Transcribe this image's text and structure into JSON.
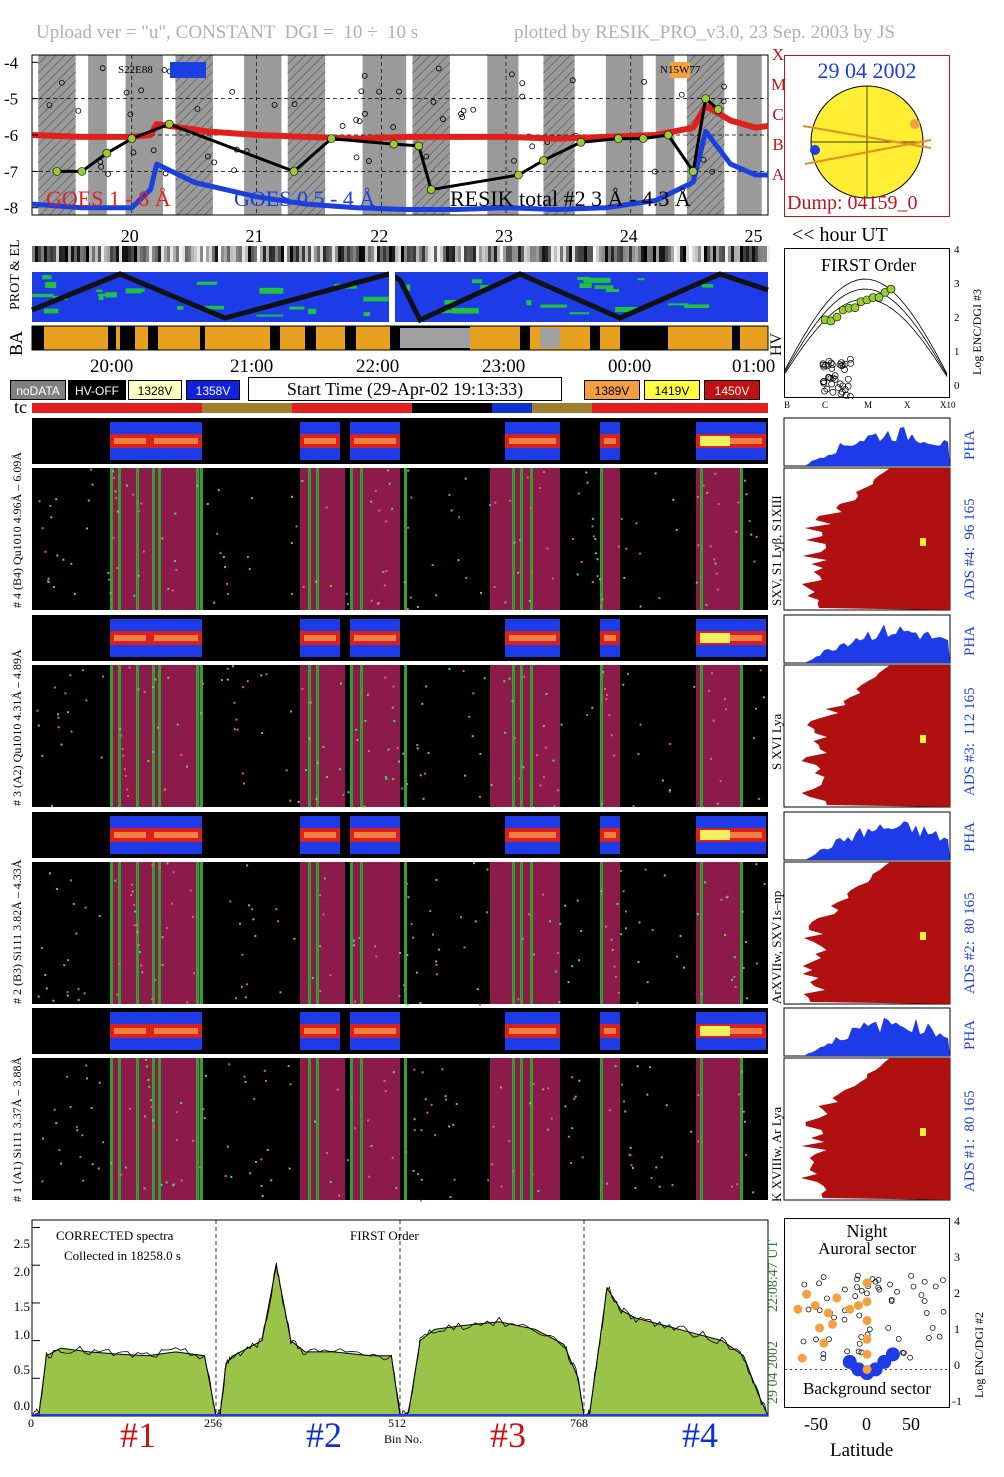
{
  "header": {
    "left": "Upload ver = \"u\", CONSTANT  DGI =  10 ÷  10 s",
    "right": "plotted by RESIK_PRO_v3.0, 23 Sep. 2003 by JS"
  },
  "goes_panel": {
    "y_ticks": [
      "-4",
      "-5",
      "-6",
      "-7",
      "-8"
    ],
    "class_labels": [
      "X",
      "M",
      "C",
      "B",
      "A"
    ],
    "region_labels": [
      "S22E88",
      "N15W77"
    ],
    "legend": [
      "GOES 1 - 8 Å",
      "GOES 0.5 - 4 Å",
      "RESIK total #2  3 Å - 4.3 Å"
    ],
    "legend_colors": [
      "#e0201c",
      "#1a3ee0",
      "#000000"
    ],
    "hour_ticks": [
      "20",
      "21",
      "22",
      "23",
      "24",
      "25"
    ],
    "hour_caption": "<< hour UT"
  },
  "sun_panel": {
    "date": "29 04 2002",
    "dump": "Dump: 04159_0"
  },
  "status_panel": {
    "labels": [
      "PROT & EL",
      "BA",
      "HV"
    ],
    "time_ticks": [
      "20:00",
      "21:00",
      "22:00",
      "23:00",
      "00:00",
      "01:00"
    ],
    "start_time": "Start Time (29-Apr-02 19:13:33)",
    "voltages": [
      {
        "label": "noDATA",
        "color": "#808080"
      },
      {
        "label": "HV-OFF",
        "color": "#000000"
      },
      {
        "label": "1328V",
        "color": "#ffffc0"
      },
      {
        "label": "1358V",
        "color": "#1020e0"
      },
      {
        "label": "1389V",
        "color": "#f5a040"
      },
      {
        "label": "1419V",
        "color": "#ffff40"
      },
      {
        "label": "1450V",
        "color": "#c01010"
      }
    ],
    "tc_label": "tc"
  },
  "first_order_panel": {
    "title": "FIRST Order",
    "y_axis_label": "Log ENC/DGI #3",
    "y_ticks": [
      "4",
      "3",
      "2",
      "1",
      "0"
    ],
    "x_ticks": [
      "B",
      "C",
      "M",
      "X",
      "X10"
    ]
  },
  "channels": [
    {
      "id": "ch4",
      "pha_range": "96 165",
      "pha_label": "PHA",
      "ads_label": "ADS #4:",
      "range": "4.96Å – 6.09Å",
      "crystal": "# 4 (B4) Qu1010",
      "lines": "SXV, S1 Lyβ, S1XIII"
    },
    {
      "id": "ch3",
      "pha_range": "112 165",
      "pha_label": "PHA",
      "ads_label": "ADS #3:",
      "range": "4.31Å – 4.89Å",
      "crystal": "# 3 (A2) Qu1010",
      "lines": "S XVI Lya"
    },
    {
      "id": "ch2",
      "pha_range": "80 165",
      "pha_label": "PHA",
      "ads_label": "ADS #2:",
      "range": "3.82Å – 4.33Å",
      "crystal": "# 2 (B3) Si111",
      "lines": "ArXVIIw, SXV1s–np"
    },
    {
      "id": "ch1",
      "pha_range": "80 165",
      "pha_label": "PHA",
      "ads_label": "ADS #1:",
      "range": "3.37Å – 3.88Å",
      "crystal": "# 1 (A1) Si111",
      "lines": "K XVIIIw, Ar Lya"
    }
  ],
  "spectrum_panel": {
    "title": "CORRECTED spectra",
    "collected": "Collected in 18258.0 s",
    "order": "FIRST Order",
    "y_ticks": [
      "2.5",
      "2.0",
      "1.5",
      "1.0",
      "0.5",
      "0.0"
    ],
    "x_ticks": [
      "0",
      "256",
      "512",
      "768"
    ],
    "xlabel": "Bin No.",
    "channel_labels": [
      "#1",
      "#2",
      "#3",
      "#4"
    ],
    "channel_label_colors": [
      "#d01010",
      "#1030d0",
      "#d01010",
      "#1030d0"
    ],
    "side_time": "22:08:47 UT",
    "side_date": "29 04 2002"
  },
  "latitude_panel": {
    "night": "Night",
    "auroral": "Auroral sector",
    "background": "Background sector",
    "x_ticks": [
      "-50",
      "0",
      "50"
    ],
    "xlabel": "Latitude",
    "y_ticks": [
      "4",
      "3",
      "2",
      "1",
      "0",
      "-1"
    ],
    "y_axis_label": "Log ENC/DGI #2"
  },
  "chart_data": [
    {
      "type": "line",
      "title": "",
      "xlabel": "<< hour UT",
      "ylabel": "",
      "xlim": [
        19.2,
        25.1
      ],
      "ylim": [
        -8.2,
        -3.8
      ],
      "series": [
        {
          "name": "GOES 1 - 8 Å",
          "x": [
            19.2,
            19.6,
            20.0,
            20.15,
            20.2,
            20.6,
            21.0,
            21.4,
            21.8,
            22.2,
            22.6,
            23.0,
            23.4,
            23.8,
            24.2,
            24.5,
            24.6,
            24.8,
            25.0,
            25.1
          ],
          "y": [
            -6.0,
            -6.05,
            -6.05,
            -6.0,
            -5.7,
            -5.9,
            -6.0,
            -6.05,
            -6.1,
            -6.05,
            -6.05,
            -6.05,
            -6.1,
            -6.05,
            -6.0,
            -5.8,
            -5.2,
            -5.6,
            -5.8,
            -5.75
          ]
        },
        {
          "name": "GOES 0.5 - 4 Å",
          "x": [
            19.2,
            19.6,
            20.0,
            20.15,
            20.2,
            20.5,
            21.0,
            21.4,
            21.8,
            22.2,
            22.6,
            23.0,
            23.4,
            23.8,
            24.2,
            24.5,
            24.6,
            24.8,
            25.0,
            25.1
          ],
          "y": [
            -7.9,
            -8.0,
            -8.0,
            -7.5,
            -6.8,
            -7.3,
            -7.7,
            -7.9,
            -8.0,
            -8.05,
            -8.05,
            -8.0,
            -8.05,
            -8.0,
            -7.8,
            -7.3,
            -5.9,
            -6.8,
            -7.1,
            -7.1
          ]
        },
        {
          "name": "RESIK total #2  3 Å - 4.3 Å",
          "x": [
            19.4,
            19.6,
            19.8,
            20.0,
            20.3,
            21.3,
            21.6,
            22.1,
            22.3,
            22.4,
            23.1,
            23.3,
            23.6,
            23.9,
            24.1,
            24.3,
            24.5,
            24.6,
            24.7
          ],
          "y": [
            -7.0,
            -7.0,
            -6.5,
            -6.1,
            -5.7,
            -7.0,
            -6.1,
            -6.25,
            -6.3,
            -7.5,
            -7.1,
            -6.7,
            -6.2,
            -6.1,
            -6.1,
            -6.0,
            -7.0,
            -5.0,
            -5.3
          ]
        }
      ]
    },
    {
      "type": "area",
      "title": "CORRECTED spectra",
      "xlabel": "Bin No.",
      "ylabel": "",
      "xlim": [
        0,
        1024
      ],
      "ylim": [
        0,
        2.6
      ],
      "x": [
        0,
        10,
        20,
        40,
        80,
        120,
        160,
        200,
        240,
        250,
        256,
        262,
        270,
        280,
        300,
        320,
        340,
        350,
        360,
        380,
        420,
        470,
        500,
        512,
        524,
        540,
        560,
        600,
        650,
        700,
        740,
        760,
        768,
        776,
        790,
        800,
        820,
        840,
        880,
        920,
        960,
        990,
        1010,
        1024
      ],
      "series": [
        {
          "name": "CORRECTED spectra",
          "y": [
            0.0,
            0.05,
            0.8,
            0.9,
            0.85,
            0.82,
            0.8,
            0.85,
            0.8,
            0.3,
            0.0,
            0.05,
            0.7,
            0.8,
            0.9,
            1.0,
            2.0,
            1.5,
            1.0,
            0.85,
            0.85,
            0.8,
            0.8,
            0.0,
            0.05,
            1.0,
            1.15,
            1.2,
            1.25,
            1.15,
            0.95,
            0.5,
            0.0,
            0.05,
            1.0,
            1.7,
            1.4,
            1.3,
            1.2,
            1.1,
            1.0,
            0.8,
            0.3,
            0.0
          ]
        }
      ]
    },
    {
      "type": "scatter",
      "title": "",
      "xlabel": "Latitude",
      "ylabel": "Log ENC/DGI #2",
      "xlim": [
        -95,
        95
      ],
      "ylim": [
        -1,
        4
      ],
      "series": [
        {
          "name": "Auroral sector",
          "x": [
            -80,
            -75,
            -70,
            -60,
            -55,
            -50,
            -45,
            -40,
            -35,
            -20,
            -10,
            0,
            0,
            0,
            0,
            0,
            0
          ],
          "y": [
            1.6,
            0.3,
            2.0,
            1.7,
            1.1,
            0.7,
            1.5,
            1.2,
            1.9,
            1.6,
            1.7,
            2.3,
            1.8,
            1.3,
            0.8,
            0.4,
            0.0
          ]
        },
        {
          "name": "Background sector",
          "x": [
            -20,
            -10,
            0,
            10,
            20,
            30
          ],
          "y": [
            0.2,
            0.0,
            -0.1,
            0.0,
            0.2,
            0.4
          ]
        }
      ]
    }
  ]
}
